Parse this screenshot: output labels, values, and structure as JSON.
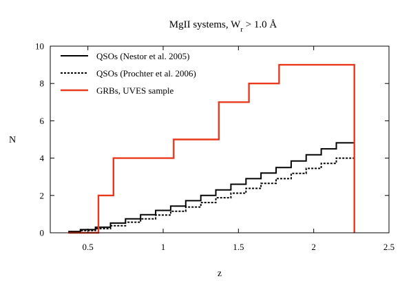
{
  "chart_data": {
    "type": "line",
    "title_prefix": "MgII systems, W",
    "title_subscript": "r",
    "title_suffix": " > 1.0 Å",
    "xlabel": "z",
    "ylabel": "N",
    "xlim": [
      0.25,
      2.5
    ],
    "ylim": [
      0,
      10
    ],
    "x_ticks": [
      0.5,
      1,
      1.5,
      2,
      2.5
    ],
    "y_ticks": [
      0,
      2,
      4,
      6,
      8,
      10
    ],
    "x_tick_labels": [
      "0.5",
      "1",
      "1.5",
      "2",
      "2.5"
    ],
    "y_tick_labels": [
      "0",
      "2",
      "4",
      "6",
      "8",
      "10"
    ],
    "legend_position": "top-left",
    "series": [
      {
        "name": "QSOs (Nestor et al. 2005)",
        "color": "#000000",
        "style": "solid",
        "step": true,
        "x": [
          0.37,
          0.45,
          0.55,
          0.65,
          0.75,
          0.85,
          0.95,
          1.05,
          1.15,
          1.25,
          1.35,
          1.45,
          1.55,
          1.65,
          1.75,
          1.85,
          1.95,
          2.05,
          2.15,
          2.27
        ],
        "y": [
          0.07,
          0.17,
          0.3,
          0.52,
          0.75,
          0.97,
          1.2,
          1.43,
          1.72,
          2.0,
          2.3,
          2.6,
          2.9,
          3.2,
          3.5,
          3.85,
          4.18,
          4.5,
          4.82,
          4.82
        ]
      },
      {
        "name": "QSOs (Prochter et al. 2006)",
        "color": "#000000",
        "style": "dotted",
        "step": true,
        "x": [
          0.37,
          0.45,
          0.55,
          0.65,
          0.75,
          0.85,
          0.95,
          1.05,
          1.15,
          1.25,
          1.35,
          1.45,
          1.55,
          1.65,
          1.75,
          1.85,
          1.95,
          2.05,
          2.15,
          2.27
        ],
        "y": [
          0.05,
          0.12,
          0.22,
          0.38,
          0.57,
          0.75,
          0.95,
          1.15,
          1.38,
          1.62,
          1.88,
          2.12,
          2.38,
          2.65,
          2.9,
          3.18,
          3.45,
          3.72,
          4.0,
          4.0
        ]
      },
      {
        "name": "GRBs, UVES sample",
        "color": "#e8391d",
        "style": "solid",
        "step": true,
        "drop_to_zero": true,
        "x": [
          0.37,
          0.57,
          0.67,
          1.07,
          1.37,
          1.57,
          1.77,
          2.27
        ],
        "y": [
          0,
          2,
          4,
          5,
          7,
          8,
          9,
          9
        ]
      }
    ]
  }
}
